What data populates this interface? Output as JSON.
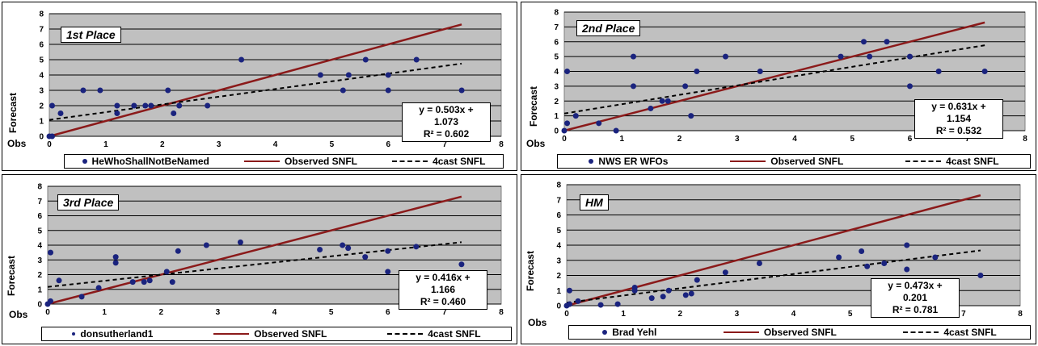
{
  "axes": {
    "y_label": "Forecast",
    "x_label": "Obs"
  },
  "legend": {
    "line_label": "Observed SNFL",
    "trend_label": "4cast SNFL"
  },
  "colors": {
    "plot_bg": "#c0c0c0",
    "points": "#1a237e",
    "observed_line": "#8b1a1a",
    "trend_line": "#000000"
  },
  "chart_data": [
    {
      "type": "scatter",
      "place": "1st Place",
      "participant": "HeWhoShallNotBeNamed",
      "equation": "y = 0.503x + 1.073",
      "r2": "R² = 0.602",
      "xlim": [
        0,
        8
      ],
      "ylim": [
        0,
        8
      ],
      "x_ticks": [
        0,
        1,
        2,
        3,
        4,
        5,
        6,
        7,
        8
      ],
      "y_ticks": [
        0,
        1,
        2,
        3,
        4,
        5,
        6,
        7,
        8
      ],
      "grid": true,
      "points": [
        [
          0,
          0
        ],
        [
          0.05,
          0
        ],
        [
          0.05,
          2
        ],
        [
          0.2,
          1.5
        ],
        [
          0.6,
          3
        ],
        [
          0.9,
          3
        ],
        [
          1.2,
          2
        ],
        [
          1.2,
          1.5
        ],
        [
          1.5,
          2
        ],
        [
          1.7,
          2
        ],
        [
          1.8,
          2
        ],
        [
          2.1,
          3
        ],
        [
          2.2,
          1.5
        ],
        [
          2.3,
          2
        ],
        [
          2.8,
          2
        ],
        [
          3.4,
          5
        ],
        [
          4.8,
          4
        ],
        [
          5.2,
          3
        ],
        [
          5.3,
          4
        ],
        [
          5.6,
          5
        ],
        [
          6.0,
          4
        ],
        [
          6.0,
          3
        ],
        [
          6.5,
          5
        ],
        [
          7.3,
          3
        ]
      ],
      "observed_line": [
        [
          0,
          0
        ],
        [
          7.3,
          7.3
        ]
      ],
      "trend": {
        "slope": 0.503,
        "intercept": 1.073,
        "x": [
          0,
          7.3
        ]
      }
    },
    {
      "type": "scatter",
      "place": "2nd Place",
      "participant": "NWS ER WFOs",
      "equation": "y = 0.631x + 1.154",
      "r2": "R² = 0.532",
      "xlim": [
        0,
        8
      ],
      "ylim": [
        0,
        8
      ],
      "x_ticks": [
        0,
        1,
        2,
        3,
        4,
        5,
        6,
        7,
        8
      ],
      "y_ticks": [
        0,
        1,
        2,
        3,
        4,
        5,
        6,
        7,
        8
      ],
      "grid": true,
      "points": [
        [
          0,
          0
        ],
        [
          0.05,
          4
        ],
        [
          0.05,
          0.5
        ],
        [
          0.2,
          1
        ],
        [
          0.6,
          0.5
        ],
        [
          0.9,
          0
        ],
        [
          1.2,
          5
        ],
        [
          1.2,
          3
        ],
        [
          1.5,
          1.5
        ],
        [
          1.7,
          2
        ],
        [
          1.8,
          2
        ],
        [
          2.1,
          3
        ],
        [
          2.2,
          1
        ],
        [
          2.3,
          4
        ],
        [
          2.8,
          5
        ],
        [
          3.4,
          4
        ],
        [
          4.8,
          5
        ],
        [
          5.2,
          6
        ],
        [
          5.3,
          5
        ],
        [
          5.6,
          6
        ],
        [
          6.0,
          5
        ],
        [
          6.0,
          3
        ],
        [
          6.5,
          4
        ],
        [
          7.3,
          4
        ]
      ],
      "observed_line": [
        [
          0,
          0
        ],
        [
          7.3,
          7.3
        ]
      ],
      "trend": {
        "slope": 0.631,
        "intercept": 1.154,
        "x": [
          0,
          7.3
        ]
      }
    },
    {
      "type": "scatter",
      "place": "3rd Place",
      "participant": "donsutherland1",
      "equation": "y = 0.416x + 1.166",
      "r2": "R² = 0.460",
      "xlim": [
        0,
        8
      ],
      "ylim": [
        0,
        8
      ],
      "x_ticks": [
        0,
        1,
        2,
        3,
        4,
        5,
        6,
        7,
        8
      ],
      "y_ticks": [
        0,
        1,
        2,
        3,
        4,
        5,
        6,
        7,
        8
      ],
      "grid": true,
      "points": [
        [
          0,
          0
        ],
        [
          0.05,
          3.5
        ],
        [
          0.05,
          0.2
        ],
        [
          0.2,
          1.6
        ],
        [
          0.6,
          0.5
        ],
        [
          0.9,
          1.1
        ],
        [
          1.2,
          3.2
        ],
        [
          1.2,
          2.8
        ],
        [
          1.5,
          1.5
        ],
        [
          1.7,
          1.5
        ],
        [
          1.8,
          1.6
        ],
        [
          2.1,
          2.2
        ],
        [
          2.2,
          1.5
        ],
        [
          2.3,
          3.6
        ],
        [
          2.8,
          4.0
        ],
        [
          3.4,
          4.2
        ],
        [
          4.8,
          3.7
        ],
        [
          5.2,
          4.0
        ],
        [
          5.3,
          3.8
        ],
        [
          5.6,
          3.2
        ],
        [
          6.0,
          3.6
        ],
        [
          6.0,
          2.2
        ],
        [
          6.5,
          3.9
        ],
        [
          7.3,
          2.7
        ]
      ],
      "observed_line": [
        [
          0,
          0
        ],
        [
          7.3,
          7.3
        ]
      ],
      "trend": {
        "slope": 0.416,
        "intercept": 1.166,
        "x": [
          0,
          7.3
        ]
      }
    },
    {
      "type": "scatter",
      "place": "HM",
      "participant": "Brad Yehl",
      "equation": "y = 0.473x + 0.201",
      "r2": "R² = 0.781",
      "xlim": [
        0,
        8
      ],
      "ylim": [
        0,
        8
      ],
      "x_ticks": [
        0,
        1,
        2,
        3,
        4,
        5,
        6,
        7,
        8
      ],
      "y_ticks": [
        0,
        1,
        2,
        3,
        4,
        5,
        6,
        7,
        8
      ],
      "grid": true,
      "points": [
        [
          0,
          0
        ],
        [
          0.05,
          1
        ],
        [
          0.05,
          0.1
        ],
        [
          0.2,
          0.3
        ],
        [
          0.6,
          0.05
        ],
        [
          0.9,
          0.1
        ],
        [
          1.2,
          1.2
        ],
        [
          1.2,
          1.0
        ],
        [
          1.5,
          0.5
        ],
        [
          1.7,
          0.6
        ],
        [
          1.8,
          1.0
        ],
        [
          2.1,
          0.7
        ],
        [
          2.2,
          0.8
        ],
        [
          2.3,
          1.7
        ],
        [
          2.8,
          2.2
        ],
        [
          3.4,
          2.8
        ],
        [
          4.8,
          3.2
        ],
        [
          5.2,
          3.6
        ],
        [
          5.3,
          2.6
        ],
        [
          5.6,
          2.8
        ],
        [
          6.0,
          4.0
        ],
        [
          6.0,
          2.4
        ],
        [
          6.5,
          3.2
        ],
        [
          7.3,
          2.0
        ]
      ],
      "observed_line": [
        [
          0,
          0
        ],
        [
          7.3,
          7.3
        ]
      ],
      "trend": {
        "slope": 0.473,
        "intercept": 0.201,
        "x": [
          0,
          7.3
        ]
      }
    }
  ]
}
